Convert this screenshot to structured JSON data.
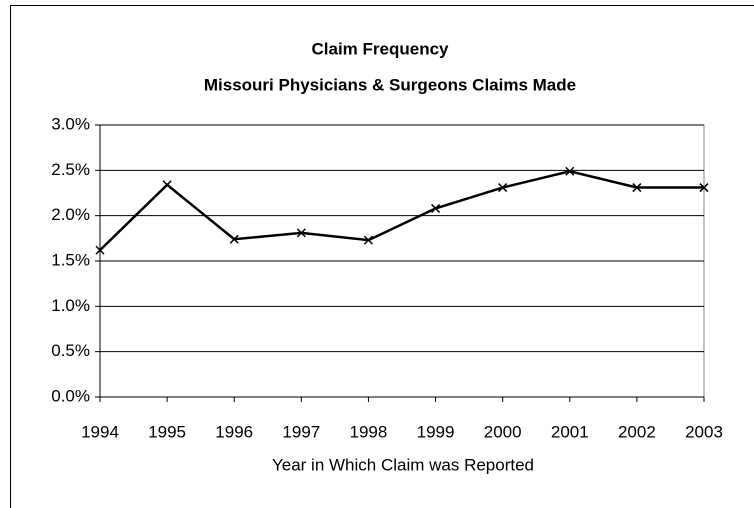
{
  "chart_data": {
    "type": "line",
    "title": "Claim Frequency",
    "subtitle": "Missouri Physicians & Surgeons Claims Made",
    "x_label": "Year in Which Claim was Reported",
    "x": [
      1994,
      1995,
      1996,
      1997,
      1998,
      1999,
      2000,
      2001,
      2002,
      2003
    ],
    "series": [
      {
        "name": "Claim Frequency",
        "color": "#000000",
        "values": [
          1.62,
          2.34,
          1.74,
          1.81,
          1.73,
          2.08,
          2.31,
          2.49,
          2.31,
          2.31
        ]
      }
    ],
    "xlim": [
      1994,
      2003
    ],
    "xticks": [
      1994,
      1995,
      1996,
      1997,
      1998,
      1999,
      2000,
      2001,
      2002,
      2003
    ],
    "ylim": [
      0,
      3
    ],
    "yticks": [
      {
        "value": 0,
        "label": "0.0%"
      },
      {
        "value": 0.5,
        "label": "0.5%"
      },
      {
        "value": 1,
        "label": "1.0%"
      },
      {
        "value": 1.5,
        "label": "1.5%"
      },
      {
        "value": 2,
        "label": "2.0%"
      },
      {
        "value": 2.5,
        "label": "2.5%"
      },
      {
        "value": 3,
        "label": "3.0%"
      }
    ],
    "grid": true,
    "legend": false
  }
}
